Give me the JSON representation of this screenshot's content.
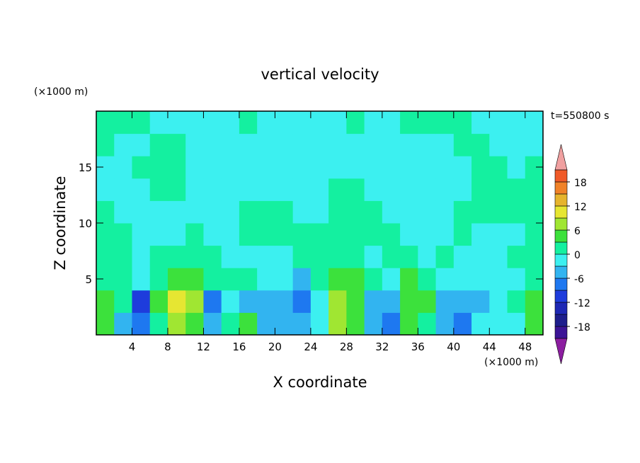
{
  "chart_data": {
    "type": "contour",
    "title": "vertical velocity",
    "xlabel": "X coordinate",
    "ylabel": "Z coordinate",
    "x_unit": "(×1000 m)",
    "y_unit": "(×1000 m)",
    "annotation": "t=550800 s",
    "xlim": [
      0,
      50
    ],
    "ylim": [
      0,
      20
    ],
    "xticks": [
      4,
      8,
      12,
      16,
      20,
      24,
      28,
      32,
      36,
      40,
      44,
      48
    ],
    "yticks": [
      5,
      10,
      15
    ],
    "xbins": [
      0,
      2,
      4,
      6,
      8,
      10,
      12,
      14,
      16,
      18,
      20,
      22,
      24,
      26,
      28,
      30,
      32,
      34,
      36,
      38,
      40,
      42,
      44,
      46,
      48,
      50
    ],
    "zbins": [
      0,
      2,
      4,
      6,
      8,
      10,
      12,
      14,
      16,
      18,
      20
    ],
    "values": [
      [
        4,
        -4,
        -7,
        1,
        7,
        4,
        -4,
        1,
        4,
        -4,
        -4,
        -4,
        -1,
        7,
        4,
        -4,
        -7,
        4,
        1,
        -4,
        -7,
        -1,
        -1,
        -1,
        4
      ],
      [
        4,
        1,
        -10,
        4,
        9,
        7,
        -7,
        -1,
        -4,
        -4,
        -4,
        -7,
        -1,
        7,
        4,
        -4,
        -4,
        4,
        4,
        -4,
        -4,
        -4,
        -1,
        1,
        4
      ],
      [
        1,
        1,
        -1,
        1,
        5,
        4,
        1,
        1,
        1,
        -1,
        -1,
        -4,
        1,
        4,
        4,
        1,
        -1,
        4,
        1,
        -1,
        -1,
        -1,
        -1,
        -1,
        1
      ],
      [
        1,
        1,
        -1,
        1,
        1,
        1,
        1,
        -1,
        -1,
        -1,
        -1,
        1,
        1,
        1,
        1,
        -1,
        1,
        1,
        -1,
        1,
        -1,
        -1,
        -1,
        1,
        1
      ],
      [
        1,
        1,
        -1,
        -1,
        -1,
        1,
        -1,
        -1,
        1,
        1,
        1,
        1,
        1,
        1,
        1,
        1,
        1,
        -1,
        -1,
        -1,
        1,
        -1,
        -1,
        -1,
        1
      ],
      [
        1,
        -1,
        -1,
        -1,
        -1,
        -1,
        -1,
        -1,
        1,
        1,
        1,
        -1,
        -1,
        1,
        1,
        1,
        -1,
        -1,
        -1,
        -1,
        1,
        1,
        1,
        1,
        1
      ],
      [
        -1,
        -1,
        -1,
        1,
        1,
        -1,
        -1,
        -1,
        -1,
        -1,
        -1,
        -1,
        -1,
        1,
        1,
        -1,
        -1,
        -1,
        -1,
        -1,
        -1,
        1,
        1,
        1,
        1
      ],
      [
        -1,
        -1,
        1,
        1,
        1,
        -1,
        -1,
        -1,
        -1,
        -1,
        -1,
        -1,
        -1,
        -1,
        -1,
        -1,
        -1,
        -1,
        -1,
        -1,
        -1,
        1,
        1,
        -1,
        1
      ],
      [
        1,
        -1,
        -1,
        1,
        1,
        -1,
        -1,
        -1,
        -1,
        -1,
        -1,
        -1,
        -1,
        -1,
        -1,
        -1,
        -1,
        -1,
        -1,
        -1,
        1,
        1,
        -1,
        -1,
        -1
      ],
      [
        1,
        1,
        1,
        -1,
        -1,
        -1,
        -1,
        -1,
        1,
        -1,
        -1,
        -1,
        -1,
        -1,
        1,
        -1,
        -1,
        1,
        1,
        1,
        1,
        -1,
        -1,
        -1,
        -1
      ]
    ],
    "levels": [
      -21,
      -18,
      -15,
      -12,
      -9,
      -6,
      -3,
      0,
      3,
      6,
      9,
      12,
      15,
      18,
      21
    ],
    "colors": [
      "#3c1496",
      "#1e1e8c",
      "#1e28b4",
      "#1e3cdc",
      "#1e78f0",
      "#32b4f0",
      "#3cf0f0",
      "#14f0a0",
      "#3ce13c",
      "#a0e632",
      "#e6e632",
      "#e6b42d",
      "#f08228",
      "#f05a28",
      "#e61e1e"
    ],
    "under_color": "#8c1ea0",
    "over_color": "#f0a0a0",
    "colorbar_ticks": [
      -18,
      -12,
      -6,
      0,
      6,
      12,
      18
    ]
  }
}
